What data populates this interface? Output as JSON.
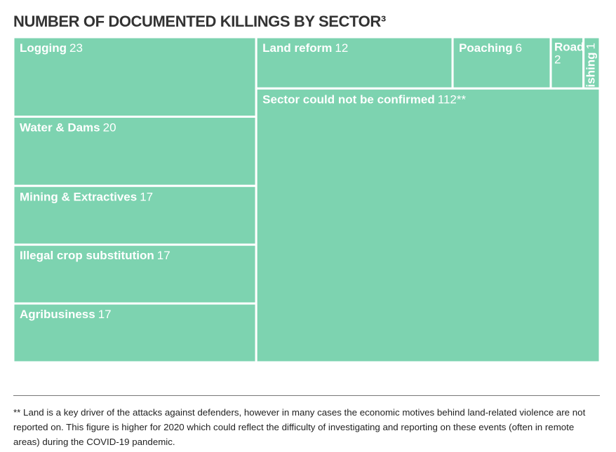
{
  "chart_data": {
    "type": "treemap",
    "title": "NUMBER OF DOCUMENTED KILLINGS BY SECTOR³",
    "categories": [
      "Logging",
      "Water & Dams",
      "Mining & Extractives",
      "Illegal crop substitution",
      "Agribusiness",
      "Land reform",
      "Poaching",
      "Road",
      "Fishing",
      "Sector could not be confirmed"
    ],
    "values": [
      23,
      20,
      17,
      17,
      17,
      12,
      6,
      2,
      1,
      112
    ],
    "value_labels": [
      "23",
      "20",
      "17",
      "17",
      "17",
      "12",
      "6",
      "2",
      "1",
      "112**"
    ],
    "color": "#7dd3b0",
    "note": "** Land is a key driver of the attacks against defenders, however in many cases the economic motives behind land-related violence are not reported on. This figure is higher for 2020 which could reflect the difficulty of investigating and reporting on these events (often in remote areas) during the COVID-19 pandemic."
  }
}
